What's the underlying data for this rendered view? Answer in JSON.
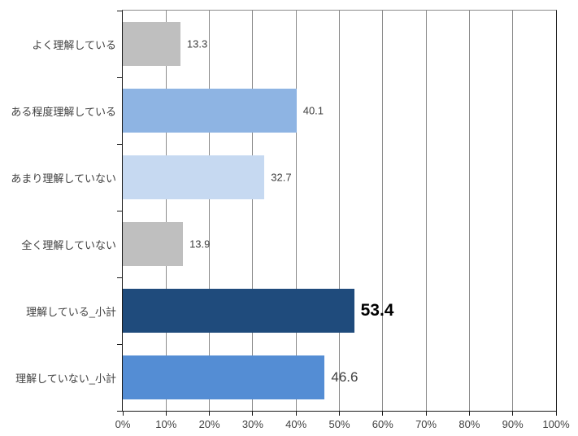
{
  "chart_data": {
    "type": "bar",
    "orientation": "horizontal",
    "title": "",
    "xlabel": "",
    "ylabel": "",
    "categories": [
      "よく理解している",
      "ある程度理解している",
      "あまり理解していない",
      "全く理解していない",
      "理解している_小計",
      "理解していない_小計"
    ],
    "values": [
      13.3,
      40.1,
      32.7,
      13.9,
      53.4,
      46.6
    ],
    "value_labels": [
      "13.3",
      "40.1",
      "32.7",
      "13.9",
      "53.4",
      "46.6"
    ],
    "bar_colors": [
      "#bfbfbf",
      "#8eb4e3",
      "#c6d9f1",
      "#bfbfbf",
      "#1f4b7c",
      "#548dd4"
    ],
    "value_label_sizes": [
      13,
      13,
      13,
      13,
      21,
      17
    ],
    "value_label_weights": [
      "normal",
      "normal",
      "normal",
      "normal",
      "bold",
      "normal"
    ],
    "value_label_colors": [
      "#404040",
      "#404040",
      "#404040",
      "#404040",
      "#000000",
      "#404040"
    ],
    "xlim": [
      0,
      100
    ],
    "x_ticks": [
      "0%",
      "10%",
      "20%",
      "30%",
      "40%",
      "50%",
      "60%",
      "70%",
      "80%",
      "90%",
      "100%"
    ],
    "grid": "vertical-major",
    "legend": "none",
    "colors": {
      "gridline": "#8c8c8c",
      "axis": "#1a1a1a",
      "text": "#404040",
      "background": "#ffffff"
    }
  }
}
